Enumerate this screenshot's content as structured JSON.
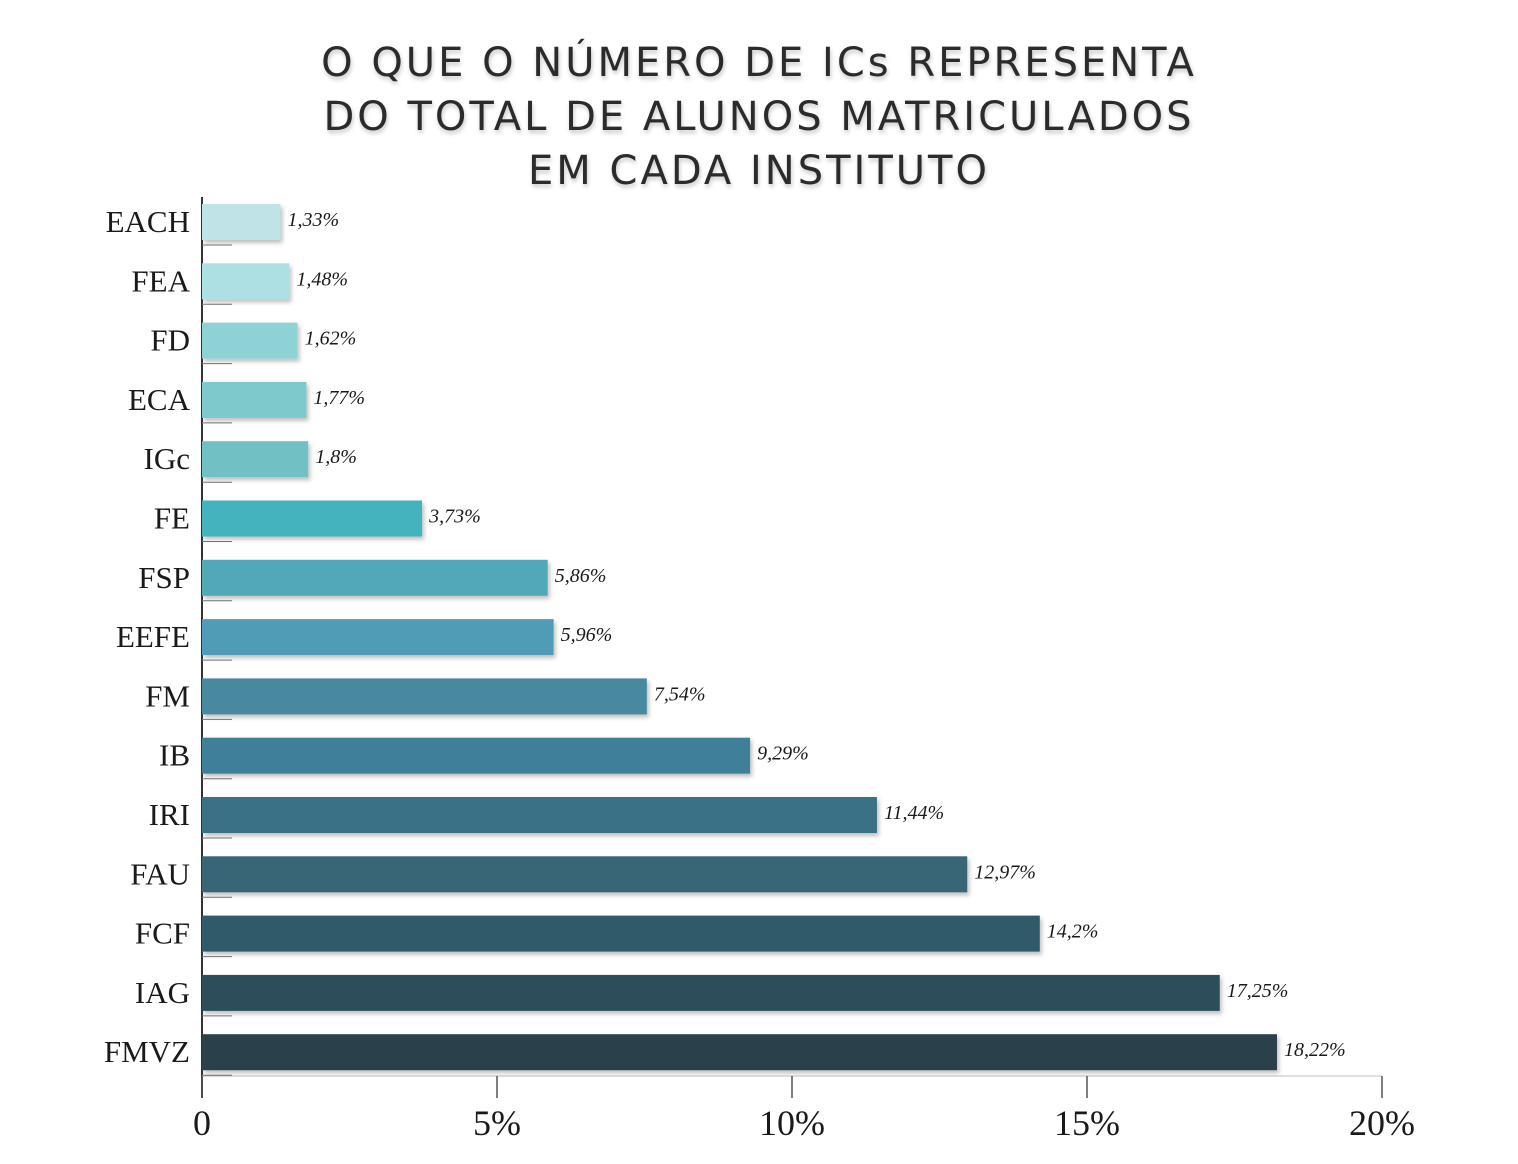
{
  "chart_data": {
    "type": "bar",
    "orientation": "horizontal",
    "title_lines": [
      "O QUE O NÚMERO DE ICs REPRESENTA",
      "DO TOTAL DE ALUNOS MATRICULADOS",
      "EM CADA INSTITUTO"
    ],
    "categories": [
      "EACH",
      "FEA",
      "FD",
      "ECA",
      "IGc",
      "FE",
      "FSP",
      "EEFE",
      "FM",
      "IB",
      "IRI",
      "FAU",
      "FCF",
      "IAG",
      "FMVZ"
    ],
    "values": [
      1.33,
      1.48,
      1.62,
      1.77,
      1.8,
      3.73,
      5.86,
      5.96,
      7.54,
      9.29,
      11.44,
      12.97,
      14.2,
      17.25,
      18.22
    ],
    "value_labels": [
      "1,33%",
      "1,48%",
      "1,62%",
      "1,77%",
      "1,8%",
      "3,73%",
      "5,86%",
      "5,96%",
      "7,54%",
      "9,29%",
      "11,44%",
      "12,97%",
      "14,2%",
      "17,25%",
      "18,22%"
    ],
    "colors": [
      "#bfe3e6",
      "#ade0e3",
      "#8fd2d6",
      "#7dc9cc",
      "#6fc0c4",
      "#45b3bd",
      "#53a8b8",
      "#4f9cb6",
      "#4889a0",
      "#417f98",
      "#3b7186",
      "#376676",
      "#2f5a69",
      "#2e4d5a",
      "#2a3f4b"
    ],
    "xticks": [
      "0",
      "5%",
      "10%",
      "15%",
      "20%"
    ],
    "xlim": [
      0,
      20
    ],
    "xlabel": "",
    "ylabel": "",
    "grid": false,
    "legend": false
  }
}
